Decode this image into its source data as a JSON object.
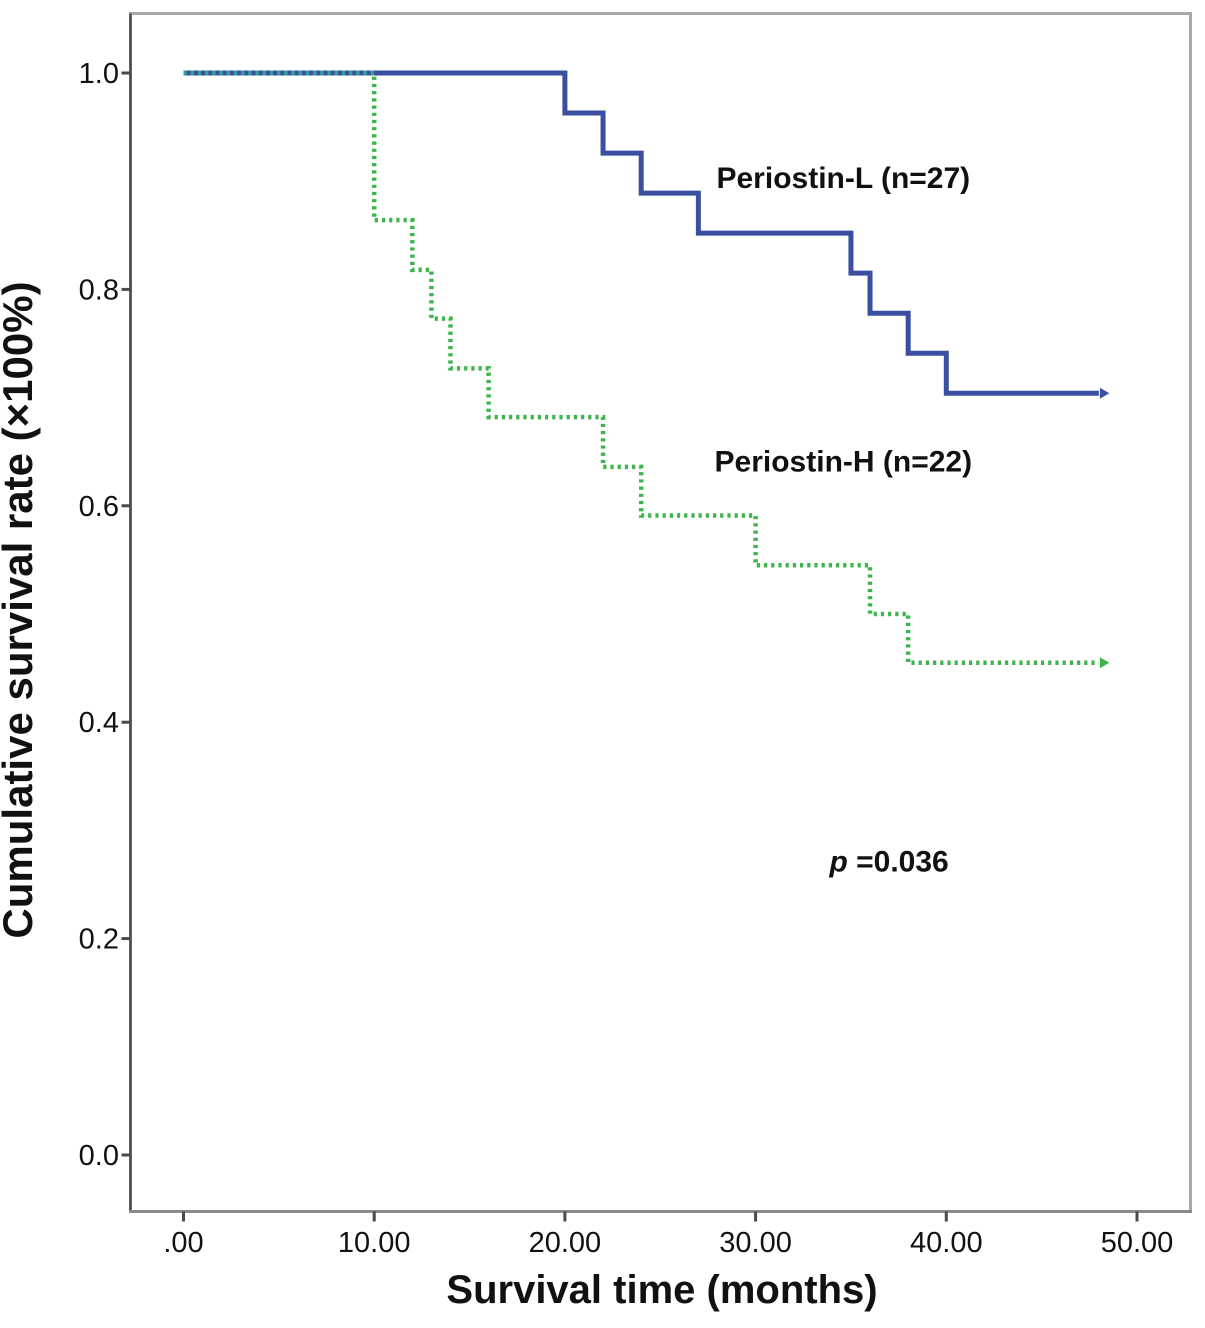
{
  "chart_data": {
    "type": "line",
    "variant": "kaplan_meier_step",
    "title": "",
    "xlabel": "Survival time (months)",
    "ylabel": "Cumulative survival rate (×100%)",
    "xlim": [
      -2.8,
      52.8
    ],
    "ylim": [
      -0.05,
      1.06
    ],
    "grid": false,
    "legend": "inline-labels",
    "x_ticks": {
      "values": [
        0,
        10,
        20,
        30,
        40,
        50
      ],
      "labels": [
        ".00",
        "10.00",
        "20.00",
        "30.00",
        "40.00",
        "50.00"
      ]
    },
    "y_ticks": {
      "values": [
        0.0,
        0.2,
        0.4,
        0.6,
        0.8,
        1.0
      ],
      "labels": [
        "0.0",
        "0.2",
        "0.4",
        "0.6",
        "0.8",
        "1.0"
      ]
    },
    "series": [
      {
        "name": "Periostin-L (n=27)",
        "group": "Periostin-L",
        "n": 27,
        "color": "#3a4fa0",
        "line_style": "solid",
        "steps": [
          [
            0,
            1.0
          ],
          [
            20,
            0.963
          ],
          [
            22,
            0.926
          ],
          [
            24,
            0.889
          ],
          [
            27,
            0.852
          ],
          [
            35,
            0.815
          ],
          [
            36,
            0.778
          ],
          [
            38,
            0.741
          ],
          [
            40,
            0.704
          ]
        ],
        "end": {
          "x": 48,
          "arrow": true
        },
        "label_anchor": {
          "x": 34.6,
          "y": 0.904
        }
      },
      {
        "name": "Periostin-H (n=22)",
        "group": "Periostin-H",
        "n": 22,
        "color": "#3fb44d",
        "line_style": "dotted",
        "steps": [
          [
            0,
            1.0
          ],
          [
            10,
            0.864
          ],
          [
            12,
            0.818
          ],
          [
            13,
            0.773
          ],
          [
            14,
            0.727
          ],
          [
            16,
            0.682
          ],
          [
            22,
            0.636
          ],
          [
            24,
            0.591
          ],
          [
            30,
            0.545
          ],
          [
            36,
            0.5
          ],
          [
            38,
            0.455
          ]
        ],
        "end": {
          "x": 48,
          "arrow": true
        },
        "label_anchor": {
          "x": 34.6,
          "y": 0.642
        }
      }
    ],
    "overlap_segment": {
      "from_x": 0,
      "to_x": 10,
      "y": 1.0,
      "color": "#2f9fa0",
      "note": "curves overlap at 1.0 between 0 and 10 months"
    },
    "annotations": [
      {
        "id": "p_value",
        "italic_part": "p",
        "text_part": " =0.036",
        "p_value": 0.036,
        "x": 37.0,
        "y": 0.272
      }
    ],
    "frame_colors": {
      "outer": "#a9a9a9",
      "left_axis": "#4a4a4a",
      "bottom_axis": "#8a8a8a",
      "tick": "#4a4a4a"
    }
  }
}
